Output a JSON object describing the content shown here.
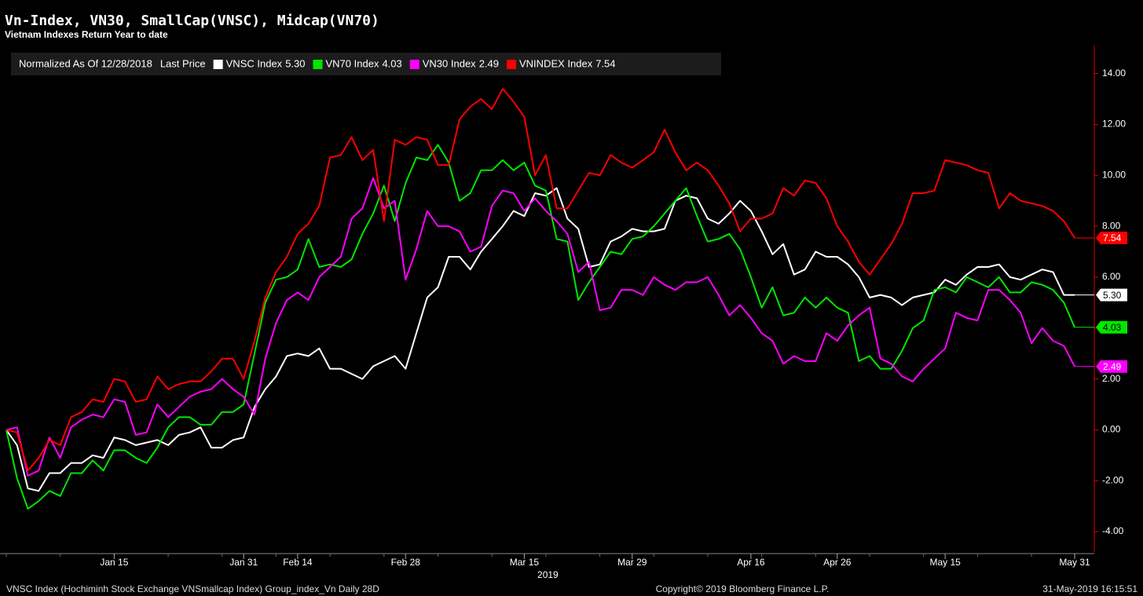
{
  "chart_data": {
    "type": "line",
    "title": "Vn-Index, VN30, SmallCap(VNSC), Midcap(VN70)",
    "subtitle": "Vietnam Indexes Return Year to date",
    "legend_prefix": "Normalized As Of 12/28/2018",
    "legend_last_price": "Last Price",
    "x_year_label": "2019",
    "footer_left": "VNSC Index (Hochiminh Stock Exchange VNSmallcap Index) Group_index_Vn  Daily 28D",
    "footer_center": "Copyright© 2019 Bloomberg Finance L.P.",
    "footer_right": "31-May-2019 16:15:51",
    "x": [
      "2018-12-28",
      "2019-01-02",
      "2019-01-03",
      "2019-01-04",
      "2019-01-07",
      "2019-01-08",
      "2019-01-09",
      "2019-01-10",
      "2019-01-11",
      "2019-01-14",
      "2019-01-15",
      "2019-01-16",
      "2019-01-17",
      "2019-01-18",
      "2019-01-21",
      "2019-01-22",
      "2019-01-23",
      "2019-01-24",
      "2019-01-25",
      "2019-01-28",
      "2019-01-29",
      "2019-01-30",
      "2019-01-31",
      "2019-02-01",
      "2019-02-11",
      "2019-02-12",
      "2019-02-13",
      "2019-02-14",
      "2019-02-15",
      "2019-02-18",
      "2019-02-19",
      "2019-02-20",
      "2019-02-21",
      "2019-02-22",
      "2019-02-25",
      "2019-02-26",
      "2019-02-27",
      "2019-02-28",
      "2019-03-01",
      "2019-03-04",
      "2019-03-05",
      "2019-03-06",
      "2019-03-07",
      "2019-03-08",
      "2019-03-11",
      "2019-03-12",
      "2019-03-13",
      "2019-03-14",
      "2019-03-15",
      "2019-03-18",
      "2019-03-19",
      "2019-03-20",
      "2019-03-21",
      "2019-03-22",
      "2019-03-25",
      "2019-03-26",
      "2019-03-27",
      "2019-03-28",
      "2019-03-29",
      "2019-04-01",
      "2019-04-02",
      "2019-04-03",
      "2019-04-04",
      "2019-04-05",
      "2019-04-08",
      "2019-04-09",
      "2019-04-10",
      "2019-04-11",
      "2019-04-12",
      "2019-04-16",
      "2019-04-17",
      "2019-04-18",
      "2019-04-19",
      "2019-04-22",
      "2019-04-23",
      "2019-04-24",
      "2019-04-25",
      "2019-04-26",
      "2019-05-02",
      "2019-05-03",
      "2019-05-06",
      "2019-05-07",
      "2019-05-08",
      "2019-05-09",
      "2019-05-10",
      "2019-05-13",
      "2019-05-14",
      "2019-05-15",
      "2019-05-16",
      "2019-05-17",
      "2019-05-20",
      "2019-05-21",
      "2019-05-22",
      "2019-05-23",
      "2019-05-24",
      "2019-05-27",
      "2019-05-28",
      "2019-05-29",
      "2019-05-30",
      "2019-05-31"
    ],
    "xticks": [
      {
        "value": "2019-01-15",
        "label": "Jan 15"
      },
      {
        "value": "2019-01-31",
        "label": "Jan 31"
      },
      {
        "value": "2019-02-14",
        "label": "Feb 14"
      },
      {
        "value": "2019-02-28",
        "label": "Feb 28"
      },
      {
        "value": "2019-03-15",
        "label": "Mar 15"
      },
      {
        "value": "2019-03-29",
        "label": "Mar 29"
      },
      {
        "value": "2019-04-16",
        "label": "Apr 16"
      },
      {
        "value": "2019-04-26",
        "label": "Apr 26"
      },
      {
        "value": "2019-05-15",
        "label": "May 15"
      },
      {
        "value": "2019-05-31",
        "label": "May 31"
      }
    ],
    "ylim": [
      -4.8,
      15.1
    ],
    "yticks": [
      {
        "value": -4,
        "label": "-4.00"
      },
      {
        "value": -2,
        "label": "-2.00"
      },
      {
        "value": 0,
        "label": "0.00"
      },
      {
        "value": 2,
        "label": "2.00"
      },
      {
        "value": 4,
        "label": "4.00"
      },
      {
        "value": 6,
        "label": "6.00"
      },
      {
        "value": 8,
        "label": "8.00"
      },
      {
        "value": 10,
        "label": "10.00"
      },
      {
        "value": 12,
        "label": "12.00"
      },
      {
        "value": 14,
        "label": "14.00"
      }
    ],
    "axis_side": "right",
    "series": [
      {
        "name": "VNSC Index",
        "color": "#ffffff",
        "last_label": "5.30",
        "values": [
          0,
          -0.6,
          -2.3,
          -2.4,
          -1.7,
          -1.7,
          -1.3,
          -1.3,
          -1.0,
          -1.1,
          -0.3,
          -0.4,
          -0.6,
          -0.5,
          -0.4,
          -0.6,
          -0.2,
          -0.1,
          0.1,
          -0.7,
          -0.7,
          -0.4,
          -0.3,
          0.9,
          1.6,
          2.1,
          2.9,
          3.0,
          2.9,
          3.2,
          2.4,
          2.4,
          2.2,
          2.0,
          2.5,
          2.7,
          2.9,
          2.4,
          3.8,
          5.2,
          5.6,
          6.8,
          6.8,
          6.3,
          7.0,
          7.5,
          8.0,
          8.6,
          8.4,
          9.3,
          9.2,
          9.5,
          8.3,
          7.9,
          6.4,
          6.5,
          7.4,
          7.6,
          7.9,
          7.8,
          7.8,
          7.9,
          9.0,
          9.2,
          9.1,
          8.3,
          8.1,
          8.5,
          9.0,
          8.6,
          7.8,
          6.9,
          7.3,
          6.1,
          6.3,
          7.0,
          6.8,
          6.8,
          6.5,
          6.0,
          5.2,
          5.3,
          5.2,
          4.9,
          5.2,
          5.3,
          5.4,
          5.9,
          5.7,
          6.1,
          6.4,
          6.4,
          6.5,
          6.0,
          5.9,
          6.1,
          6.3,
          6.2,
          5.3,
          5.3
        ]
      },
      {
        "name": "VN70 Index",
        "color": "#00e600",
        "last_label": "4.03",
        "values": [
          0,
          -1.9,
          -3.1,
          -2.8,
          -2.4,
          -2.6,
          -1.7,
          -1.7,
          -1.2,
          -1.6,
          -0.8,
          -0.8,
          -1.1,
          -1.3,
          -0.7,
          0.1,
          0.5,
          0.5,
          0.2,
          0.2,
          0.7,
          0.7,
          1.0,
          3.0,
          5.0,
          5.9,
          6.0,
          6.3,
          7.5,
          6.4,
          6.5,
          6.4,
          6.7,
          7.7,
          8.5,
          9.6,
          8.2,
          9.7,
          10.7,
          10.6,
          11.2,
          10.5,
          9.0,
          9.3,
          10.2,
          10.2,
          10.6,
          10.2,
          10.5,
          9.6,
          9.4,
          7.5,
          7.4,
          5.1,
          5.8,
          6.4,
          7.0,
          6.9,
          7.5,
          7.6,
          8.0,
          8.5,
          9.0,
          9.5,
          8.4,
          7.4,
          7.5,
          7.7,
          7.1,
          6.0,
          4.8,
          5.6,
          4.5,
          4.6,
          5.2,
          4.8,
          5.2,
          4.8,
          4.6,
          2.7,
          2.9,
          2.4,
          2.4,
          3.1,
          4.0,
          4.3,
          5.5,
          5.6,
          5.4,
          6.0,
          5.8,
          5.6,
          6.0,
          5.4,
          5.4,
          5.8,
          5.7,
          5.5,
          5.0,
          4.03
        ]
      },
      {
        "name": "VN30 Index",
        "color": "#ff00ff",
        "last_label": "2.49",
        "values": [
          0,
          0.1,
          -1.8,
          -1.6,
          -0.3,
          -1.1,
          0.1,
          0.4,
          0.6,
          0.5,
          1.2,
          1.1,
          -0.2,
          -0.1,
          1.0,
          0.5,
          0.9,
          1.3,
          1.5,
          1.6,
          2.0,
          1.6,
          1.3,
          0.6,
          2.8,
          4.2,
          5.1,
          5.4,
          5.1,
          6.0,
          6.4,
          6.8,
          8.3,
          8.7,
          9.9,
          8.7,
          9.0,
          5.9,
          7.1,
          8.6,
          8.0,
          8.0,
          7.8,
          7.0,
          7.2,
          8.8,
          9.4,
          9.3,
          8.6,
          9.1,
          8.6,
          8.2,
          7.7,
          6.2,
          6.6,
          4.7,
          4.8,
          5.5,
          5.5,
          5.3,
          6.0,
          5.7,
          5.5,
          5.8,
          5.8,
          6.0,
          5.3,
          4.5,
          4.9,
          4.4,
          3.8,
          3.5,
          2.6,
          2.9,
          2.7,
          2.7,
          3.8,
          3.5,
          4.1,
          4.5,
          4.8,
          2.8,
          2.6,
          2.1,
          1.9,
          2.4,
          2.8,
          3.2,
          4.6,
          4.4,
          4.3,
          5.5,
          5.5,
          5.1,
          4.6,
          3.4,
          4.0,
          3.5,
          3.3,
          2.49
        ]
      },
      {
        "name": "VNINDEX Index",
        "color": "#ff0000",
        "last_label": "7.54",
        "values": [
          0,
          -0.1,
          -1.6,
          -1.1,
          -0.4,
          -0.6,
          0.5,
          0.7,
          1.2,
          1.1,
          2.0,
          1.9,
          1.1,
          1.2,
          2.1,
          1.6,
          1.8,
          1.9,
          1.9,
          2.3,
          2.8,
          2.8,
          2.0,
          3.5,
          5.2,
          6.2,
          6.8,
          7.7,
          8.1,
          8.8,
          10.7,
          10.8,
          11.5,
          10.6,
          11.0,
          8.2,
          11.4,
          11.2,
          11.5,
          11.4,
          10.4,
          10.4,
          12.2,
          12.7,
          13.0,
          12.6,
          13.4,
          12.9,
          12.3,
          10.0,
          10.8,
          8.7,
          8.7,
          9.4,
          10.1,
          10.0,
          10.8,
          10.5,
          10.3,
          10.6,
          10.9,
          11.8,
          10.9,
          10.2,
          10.5,
          10.2,
          9.6,
          8.9,
          7.8,
          8.3,
          8.3,
          8.5,
          9.5,
          9.2,
          9.8,
          9.7,
          9.1,
          8.0,
          7.4,
          6.6,
          6.1,
          6.7,
          7.3,
          8.1,
          9.3,
          9.3,
          9.4,
          10.6,
          10.5,
          10.4,
          10.2,
          10.1,
          8.7,
          9.3,
          9.0,
          8.9,
          8.8,
          8.6,
          8.2,
          7.54
        ]
      }
    ]
  }
}
